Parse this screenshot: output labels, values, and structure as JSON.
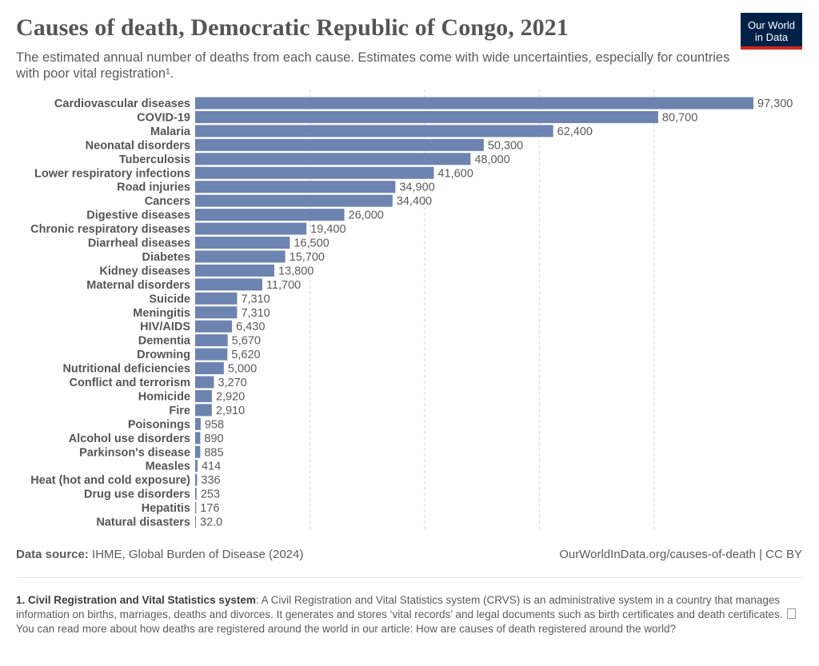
{
  "header": {
    "title": "Causes of death, Democratic Republic of Congo, 2021",
    "subtitle": "The estimated annual number of deaths from each cause. Estimates come with wide uncertainties, especially for countries with poor vital registration¹.",
    "logo_line1": "Our World",
    "logo_line2": "in Data"
  },
  "colors": {
    "bar": "#6d83b0",
    "logo_bg": "#002147",
    "logo_accent": "#ce261e",
    "grid": "#d9d9d9"
  },
  "chart_data": {
    "type": "bar",
    "orientation": "horizontal",
    "categories": [
      "Cardiovascular diseases",
      "COVID-19",
      "Malaria",
      "Neonatal disorders",
      "Tuberculosis",
      "Lower respiratory infections",
      "Road injuries",
      "Cancers",
      "Digestive diseases",
      "Chronic respiratory diseases",
      "Diarrheal diseases",
      "Diabetes",
      "Kidney diseases",
      "Maternal disorders",
      "Suicide",
      "Meningitis",
      "HIV/AIDS",
      "Dementia",
      "Drowning",
      "Nutritional deficiencies",
      "Conflict and terrorism",
      "Homicide",
      "Fire",
      "Poisonings",
      "Alcohol use disorders",
      "Parkinson's disease",
      "Measles",
      "Heat (hot and cold exposure)",
      "Drug use disorders",
      "Hepatitis",
      "Natural disasters"
    ],
    "values": [
      97300,
      80700,
      62400,
      50300,
      48000,
      41600,
      34900,
      34400,
      26000,
      19400,
      16500,
      15700,
      13800,
      11700,
      7310,
      7310,
      6430,
      5670,
      5620,
      5000,
      3270,
      2920,
      2910,
      958,
      890,
      885,
      414,
      336,
      253,
      176,
      32
    ],
    "value_labels": [
      "97,300",
      "80,700",
      "62,400",
      "50,300",
      "48,000",
      "41,600",
      "34,900",
      "34,400",
      "26,000",
      "19,400",
      "16,500",
      "15,700",
      "13,800",
      "11,700",
      "7,310",
      "7,310",
      "6,430",
      "5,670",
      "5,620",
      "5,000",
      "3,270",
      "2,920",
      "2,910",
      "958",
      "890",
      "885",
      "414",
      "336",
      "253",
      "176",
      "32.0"
    ],
    "xlim": [
      0,
      97300
    ],
    "grid": true,
    "gridline_values": [
      20000,
      40000,
      60000,
      80000
    ]
  },
  "footer": {
    "source_label": "Data source:",
    "source_text": "IHME, Global Burden of Disease (2024)",
    "url": "OurWorldInData.org/causes-of-death | CC BY"
  },
  "note": {
    "heading": "1. Civil Registration and Vital Statistics system",
    "text": ": A Civil Registration and Vital Statistics system (CRVS) is an administrative system in a country that manages information on births, marriages, deaths and divorces. It generates and stores ‘vital records’ and legal documents such as birth certificates and death certificates.",
    "link_text": "You can read more about how deaths are registered around the world in our article: How are causes of death registered around the world?"
  }
}
